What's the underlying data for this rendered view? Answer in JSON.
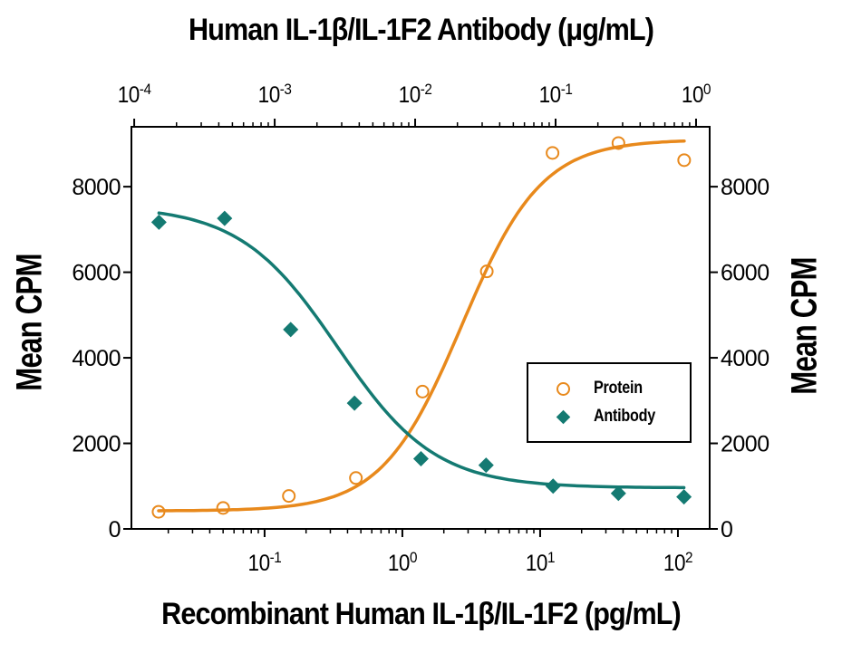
{
  "page": {
    "background": "#ffffff"
  },
  "chart_data": {
    "type": "line",
    "title_top": "Human IL-1β/IL-1F2 Antibody (μg/mL)",
    "title_bottom": "Recombinant Human IL-1β/IL-1F2 (pg/mL)",
    "ylabel_left": "Mean CPM",
    "ylabel_right": "Mean CPM",
    "grid": false,
    "axis_color": "#000000",
    "y_axis": {
      "lim": [
        0,
        9400
      ],
      "ticks": [
        0,
        2000,
        4000,
        6000,
        8000
      ],
      "ticks_both_sides": true
    },
    "bottom_axis": {
      "scale": "log10",
      "lim": [
        0.0108,
        170
      ],
      "major_tick_exponents": [
        -1,
        0,
        1,
        2
      ]
    },
    "top_axis": {
      "scale": "log10",
      "lim": [
        9.55e-05,
        1.25
      ],
      "major_tick_exponents": [
        -4,
        -3,
        -2,
        -1,
        0
      ]
    },
    "series": [
      {
        "name": "Protein",
        "axis": "bottom",
        "marker": "open-circle",
        "color": "#E8891C",
        "x": [
          0.017,
          0.05,
          0.15,
          0.46,
          1.4,
          4.1,
          12.3,
          37,
          111
        ],
        "y": [
          400,
          490,
          770,
          1190,
          3210,
          6020,
          8790,
          9020,
          8620
        ],
        "fit": {
          "type": "4PL",
          "min": 420,
          "max": 9100,
          "mid": 2.7,
          "hill": 1.5,
          "direction": "up",
          "range": [
            0.017,
            111
          ]
        }
      },
      {
        "name": "Antibody",
        "axis": "top",
        "marker": "filled-diamond",
        "color": "#147A72",
        "x": [
          0.00015,
          0.00044,
          0.0013,
          0.0037,
          0.011,
          0.032,
          0.096,
          0.28,
          0.82
        ],
        "y": [
          7170,
          7260,
          4660,
          2940,
          1640,
          1490,
          1000,
          830,
          750
        ],
        "fit": {
          "type": "4PL",
          "min": 960,
          "max": 7550,
          "mid": 0.0028,
          "hill": 1.25,
          "direction": "down",
          "range": [
            0.00015,
            0.82
          ]
        }
      }
    ],
    "legend": {
      "position": "middle-right",
      "items": [
        {
          "label": "Protein",
          "marker": "open-circle",
          "color": "#E8891C"
        },
        {
          "label": "Antibody",
          "marker": "filled-diamond",
          "color": "#147A72"
        }
      ]
    }
  }
}
